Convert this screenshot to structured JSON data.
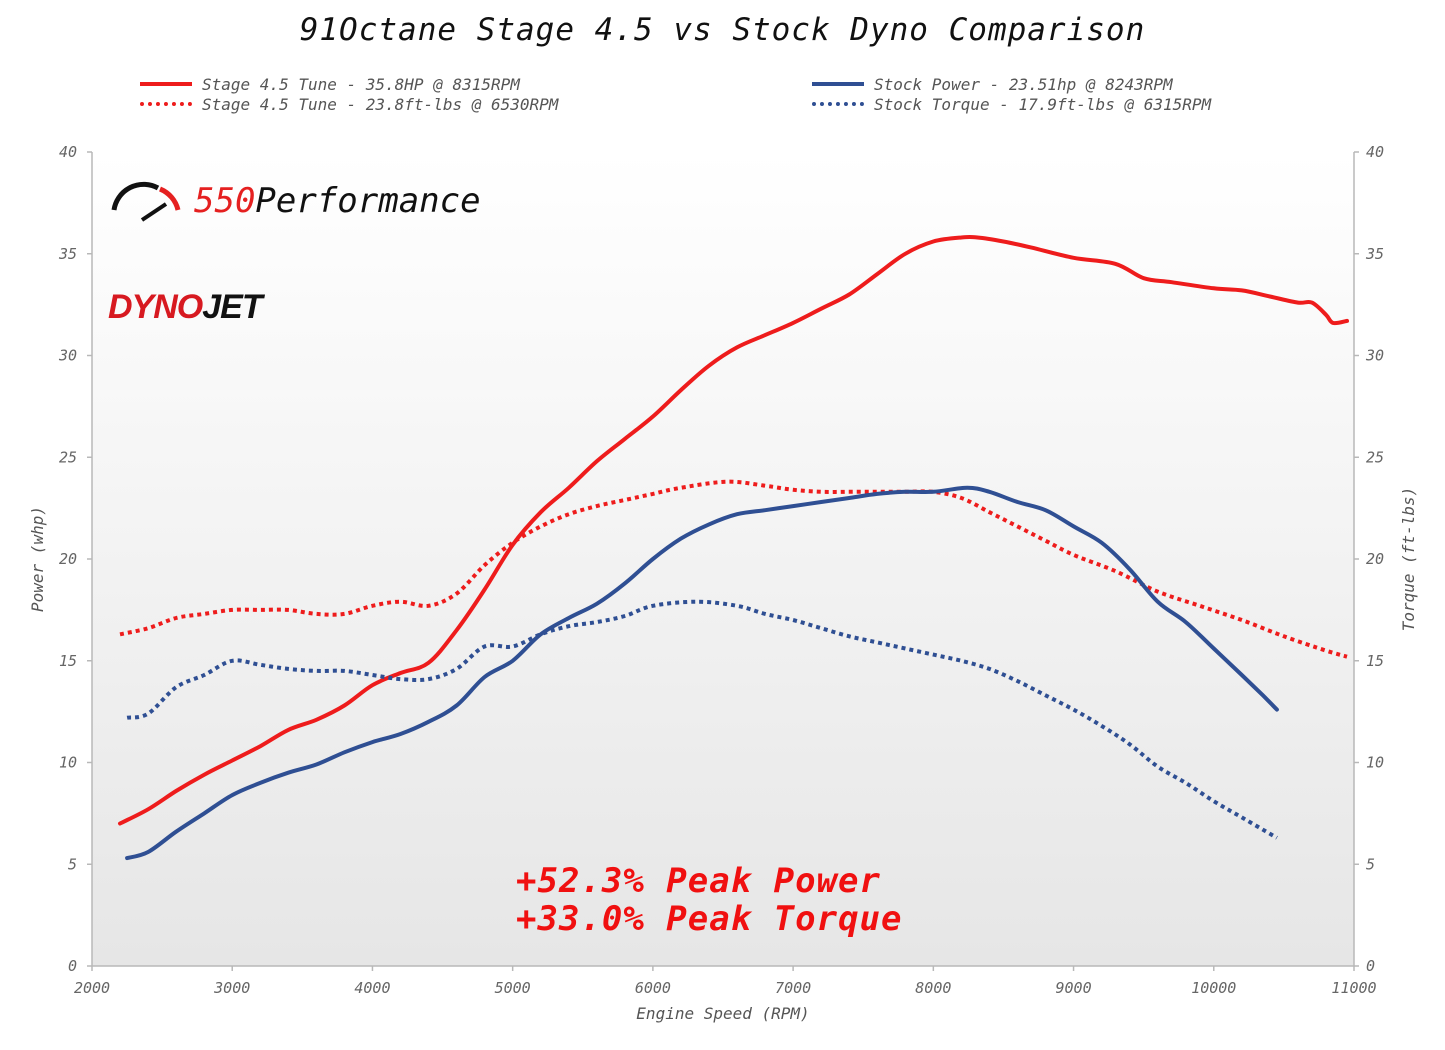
{
  "title": "91Octane Stage 4.5 vs Stock Dyno Comparison",
  "legend": {
    "left": [
      {
        "label": "Stage 4.5 Tune - 35.8HP @ 8315RPM",
        "color": "#ee1c1c",
        "style": "solid"
      },
      {
        "label": "Stage 4.5 Tune - 23.8ft-lbs @ 6530RPM",
        "color": "#ee1c1c",
        "style": "dotted"
      }
    ],
    "right": [
      {
        "label": "Stock Power - 23.51hp @ 8243RPM",
        "color": "#2f4f93",
        "style": "solid"
      },
      {
        "label": "Stock Torque - 17.9ft-lbs @ 6315RPM",
        "color": "#2f4f93",
        "style": "dotted"
      }
    ]
  },
  "logos": {
    "brand_num": "550",
    "brand_text": "Performance",
    "dyno_a": "DYNO",
    "dyno_b": "JET"
  },
  "annotations": [
    "+52.3% Peak Power",
    "+33.0% Peak Torque"
  ],
  "chart_data": {
    "type": "line",
    "xlabel": "Engine Speed (RPM)",
    "ylabel": "Power (whp)",
    "y2label": "Torque (ft-lbs)",
    "xlim": [
      2000,
      11000
    ],
    "ylim": [
      0,
      40
    ],
    "y2lim": [
      0,
      40
    ],
    "xticks": [
      2000,
      3000,
      4000,
      5000,
      6000,
      7000,
      8000,
      9000,
      10000,
      11000
    ],
    "yticks": [
      0,
      5,
      10,
      15,
      20,
      25,
      30,
      35,
      40
    ],
    "grid": "none",
    "legend_position": "top",
    "series": [
      {
        "name": "Stage 4.5 Tune - 35.8HP @ 8315RPM",
        "color": "#ee1c1c",
        "style": "solid",
        "x": [
          2200,
          2400,
          2600,
          2800,
          3000,
          3200,
          3400,
          3600,
          3800,
          4000,
          4200,
          4400,
          4600,
          4800,
          5000,
          5200,
          5400,
          5600,
          5800,
          6000,
          6200,
          6400,
          6600,
          6800,
          7000,
          7200,
          7400,
          7600,
          7800,
          8000,
          8200,
          8315,
          8500,
          8700,
          9000,
          9300,
          9500,
          9700,
          10000,
          10200,
          10400,
          10600,
          10700,
          10800,
          10850,
          10950
        ],
        "y": [
          7.0,
          7.7,
          8.6,
          9.4,
          10.1,
          10.8,
          11.6,
          12.1,
          12.8,
          13.8,
          14.4,
          14.9,
          16.5,
          18.5,
          20.7,
          22.3,
          23.5,
          24.8,
          25.9,
          27.0,
          28.3,
          29.5,
          30.4,
          31.0,
          31.6,
          32.3,
          33.0,
          34.0,
          35.0,
          35.6,
          35.8,
          35.8,
          35.6,
          35.3,
          34.8,
          34.5,
          33.8,
          33.6,
          33.3,
          33.2,
          32.9,
          32.6,
          32.6,
          32.0,
          31.6,
          31.7
        ]
      },
      {
        "name": "Stage 4.5 Tune - 23.8ft-lbs @ 6530RPM",
        "color": "#ee1c1c",
        "style": "dotted",
        "x": [
          2200,
          2400,
          2600,
          2800,
          3000,
          3200,
          3400,
          3600,
          3800,
          4000,
          4200,
          4400,
          4600,
          4800,
          5000,
          5200,
          5400,
          5600,
          5800,
          6000,
          6200,
          6530,
          6800,
          7000,
          7200,
          7400,
          7600,
          7800,
          8000,
          8200,
          8400,
          8600,
          8800,
          9000,
          9300,
          9600,
          9900,
          10200,
          10500,
          10800,
          10950
        ],
        "y": [
          16.3,
          16.6,
          17.1,
          17.3,
          17.5,
          17.5,
          17.5,
          17.3,
          17.3,
          17.7,
          17.9,
          17.7,
          18.3,
          19.7,
          20.8,
          21.6,
          22.2,
          22.6,
          22.9,
          23.2,
          23.5,
          23.8,
          23.6,
          23.4,
          23.3,
          23.3,
          23.3,
          23.3,
          23.3,
          23.0,
          22.3,
          21.6,
          20.9,
          20.2,
          19.4,
          18.4,
          17.7,
          17.0,
          16.2,
          15.5,
          15.2
        ]
      },
      {
        "name": "Stock Power - 23.51hp @ 8243RPM",
        "color": "#2f4f93",
        "style": "solid",
        "x": [
          2250,
          2400,
          2600,
          2800,
          3000,
          3200,
          3400,
          3600,
          3800,
          4000,
          4200,
          4400,
          4600,
          4800,
          5000,
          5200,
          5400,
          5600,
          5800,
          6000,
          6200,
          6400,
          6600,
          6800,
          7000,
          7200,
          7400,
          7600,
          7800,
          8000,
          8243,
          8400,
          8600,
          8800,
          9000,
          9200,
          9400,
          9600,
          9800,
          10000,
          10200,
          10350,
          10450
        ],
        "y": [
          5.3,
          5.6,
          6.6,
          7.5,
          8.4,
          9.0,
          9.5,
          9.9,
          10.5,
          11.0,
          11.4,
          12.0,
          12.8,
          14.2,
          15.0,
          16.3,
          17.1,
          17.8,
          18.8,
          20.0,
          21.0,
          21.7,
          22.2,
          22.4,
          22.6,
          22.8,
          23.0,
          23.2,
          23.3,
          23.3,
          23.5,
          23.3,
          22.8,
          22.4,
          21.6,
          20.8,
          19.5,
          17.9,
          16.9,
          15.6,
          14.3,
          13.3,
          12.6
        ]
      },
      {
        "name": "Stock Torque - 17.9ft-lbs @ 6315RPM",
        "color": "#2f4f93",
        "style": "dotted",
        "x": [
          2250,
          2400,
          2600,
          2800,
          3000,
          3200,
          3400,
          3600,
          3800,
          4000,
          4200,
          4400,
          4600,
          4800,
          5000,
          5200,
          5400,
          5600,
          5800,
          6000,
          6315,
          6600,
          6800,
          7000,
          7200,
          7400,
          7600,
          7800,
          8000,
          8200,
          8400,
          8600,
          8800,
          9000,
          9200,
          9400,
          9600,
          9800,
          10000,
          10200,
          10450
        ],
        "y": [
          12.2,
          12.4,
          13.7,
          14.3,
          15.0,
          14.8,
          14.6,
          14.5,
          14.5,
          14.3,
          14.1,
          14.1,
          14.6,
          15.7,
          15.7,
          16.3,
          16.7,
          16.9,
          17.2,
          17.7,
          17.9,
          17.7,
          17.3,
          17.0,
          16.6,
          16.2,
          15.9,
          15.6,
          15.3,
          15.0,
          14.6,
          14.0,
          13.3,
          12.6,
          11.8,
          10.9,
          9.8,
          9.0,
          8.1,
          7.3,
          6.3
        ]
      }
    ]
  }
}
